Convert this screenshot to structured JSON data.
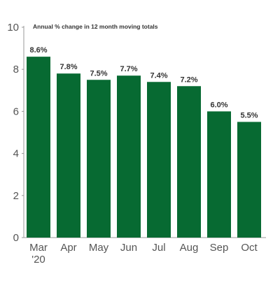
{
  "chart_data": {
    "type": "bar",
    "subtitle": "Annual % change in 12 month moving totals",
    "categories": [
      "Mar\n'20",
      "Apr",
      "May",
      "Jun",
      "Jul",
      "Aug",
      "Sep",
      "Oct"
    ],
    "values": [
      8.6,
      7.8,
      7.5,
      7.7,
      7.4,
      7.2,
      6.0,
      5.5
    ],
    "data_labels": [
      "8.6%",
      "7.8%",
      "7.5%",
      "7.7%",
      "7.4%",
      "7.2%",
      "6.0%",
      "5.5%"
    ],
    "ylim": [
      0,
      10
    ],
    "yticks": [
      0,
      2,
      4,
      6,
      8,
      10
    ],
    "grid": false,
    "bar_color": "#076a32",
    "axis_color": "#999999"
  }
}
